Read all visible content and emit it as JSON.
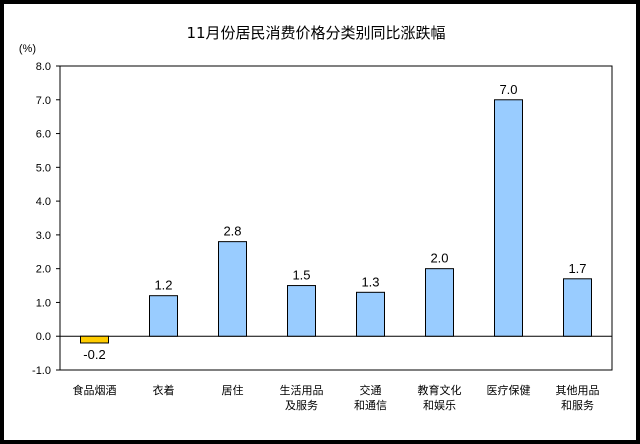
{
  "chart_data": {
    "type": "bar",
    "title": "11月份居民消费价格分类别同比涨跌幅",
    "ylabel": "(%)",
    "xlabel": "",
    "ylim": [
      -1.0,
      8.0
    ],
    "yticks": [
      "8.0",
      "7.0",
      "6.0",
      "5.0",
      "4.0",
      "3.0",
      "2.0",
      "1.0",
      "0.0",
      "-1.0"
    ],
    "categories": [
      [
        "食品烟酒"
      ],
      [
        "衣着"
      ],
      [
        "居住"
      ],
      [
        "生活用品",
        "及服务"
      ],
      [
        "交通",
        "和通信"
      ],
      [
        "教育文化",
        "和娱乐"
      ],
      [
        "医疗保健"
      ],
      [
        "其他用品",
        "和服务"
      ]
    ],
    "values": [
      -0.2,
      1.2,
      2.8,
      1.5,
      1.3,
      2.0,
      7.0,
      1.7
    ],
    "value_labels": [
      "-0.2",
      "1.2",
      "2.8",
      "1.5",
      "1.3",
      "2.0",
      "7.0",
      "1.7"
    ],
    "colors": {
      "positive": "#99CCFF",
      "negative": "#FFCC00",
      "bar_stroke": "#000000"
    },
    "grid": false,
    "legend": "none"
  }
}
